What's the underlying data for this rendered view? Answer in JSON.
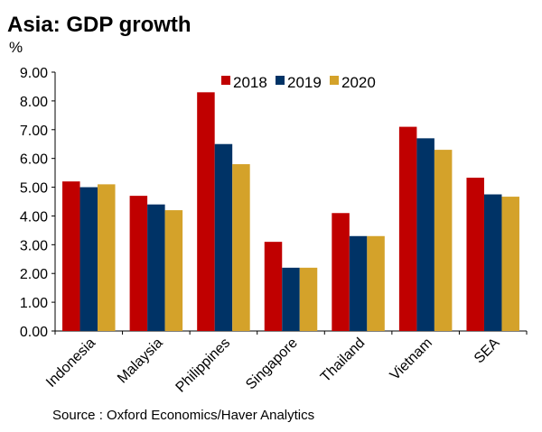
{
  "title": "Asia: GDP growth",
  "unit": "%",
  "source": "Source : Oxford Economics/Haver Analytics",
  "chart_data": {
    "type": "bar",
    "title": "Asia: GDP growth",
    "ylabel": "%",
    "xlabel": "",
    "ylim": [
      0,
      9
    ],
    "yticks": [
      "0.00",
      "1.00",
      "2.00",
      "3.00",
      "4.00",
      "5.00",
      "6.00",
      "7.00",
      "8.00",
      "9.00"
    ],
    "grid": false,
    "legend": "top-center",
    "categories": [
      "Indonesia",
      "Malaysia",
      "Philippines",
      "Singapore",
      "Thailand",
      "Vietnam",
      "SEA"
    ],
    "series": [
      {
        "name": "2018",
        "color": "#c00000",
        "values": [
          5.2,
          4.7,
          8.3,
          3.1,
          4.1,
          7.1,
          5.33
        ]
      },
      {
        "name": "2019",
        "color": "#003366",
        "values": [
          5.0,
          4.4,
          6.5,
          2.2,
          3.3,
          6.7,
          4.75
        ]
      },
      {
        "name": "2020",
        "color": "#d4a22a",
        "values": [
          5.1,
          4.2,
          5.8,
          2.2,
          3.3,
          6.3,
          4.67
        ]
      }
    ]
  }
}
